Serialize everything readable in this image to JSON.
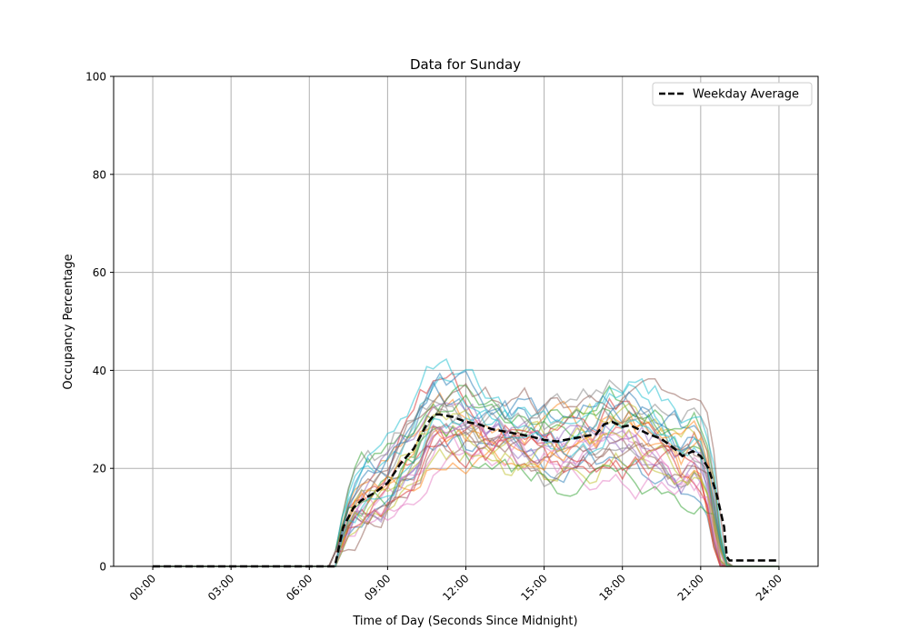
{
  "chart_data": {
    "type": "line",
    "title": "Data for Sunday",
    "xlabel": "Time of Day (Seconds Since Midnight)",
    "ylabel": "Occupancy Percentage",
    "xlim": [
      -1.5,
      25.5
    ],
    "ylim": [
      0,
      100
    ],
    "grid": true,
    "legend_placement": "top-right",
    "x_ticks": [
      0,
      3,
      6,
      9,
      12,
      15,
      18,
      21,
      24
    ],
    "x_tick_labels": [
      "00:00",
      "03:00",
      "06:00",
      "09:00",
      "12:00",
      "15:00",
      "18:00",
      "21:00",
      "24:00"
    ],
    "y_ticks": [
      0,
      20,
      40,
      60,
      80,
      100
    ],
    "y_tick_labels": [
      "0",
      "20",
      "40",
      "60",
      "80",
      "100"
    ],
    "individual_series_count": 30,
    "individual_series_colors": [
      "#1f77b4",
      "#ff7f0e",
      "#2ca02c",
      "#d62728",
      "#9467bd",
      "#8c564b",
      "#e377c2",
      "#7f7f7f",
      "#bcbd22",
      "#17becf"
    ],
    "average": {
      "name": "Weekday Average",
      "color": "#000000",
      "x": [
        0,
        6.98,
        7.3,
        7.7,
        8,
        8.5,
        9,
        9.5,
        10,
        10.5,
        10.8,
        11,
        11.5,
        12,
        12.5,
        13,
        13.5,
        14,
        14.5,
        15,
        15.5,
        16,
        16.5,
        17,
        17.3,
        17.6,
        18,
        18.3,
        19,
        19.5,
        20,
        20.3,
        20.7,
        21,
        21.3,
        21.6,
        21.9,
        22.0,
        22.1,
        24
      ],
      "y": [
        0,
        0,
        8,
        12,
        13.5,
        15,
        17,
        21,
        24,
        29,
        31,
        31,
        30.5,
        29.5,
        29,
        28,
        27.5,
        27,
        26.5,
        25.8,
        25.5,
        26,
        26.5,
        27,
        29,
        29.5,
        28.5,
        28.8,
        27,
        26,
        24,
        22.5,
        23.5,
        22.5,
        20,
        15,
        8,
        2,
        1.2,
        1.2
      ]
    }
  }
}
